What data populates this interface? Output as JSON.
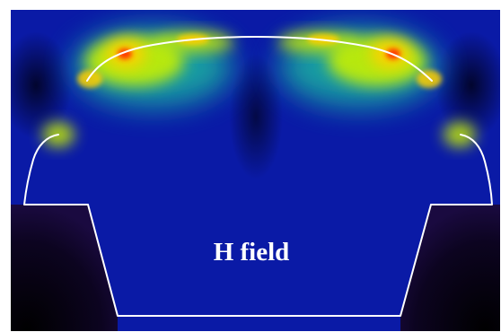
{
  "figure": {
    "label": "H field",
    "colors": {
      "background": "#ffffff",
      "field_base": "#0a1aa6",
      "field_deep": "#040a5e",
      "metal": "#0c0420",
      "field_mid": "#1ec8a0",
      "field_high": "#c8f000",
      "field_peak": "#ffd000",
      "hotspot": "#ff3000",
      "boundary": "#ffffff"
    }
  }
}
